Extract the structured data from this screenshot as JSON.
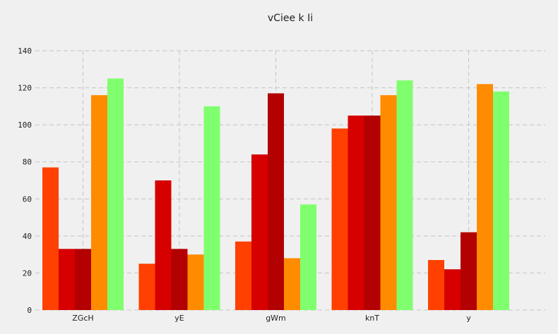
{
  "chart_data": {
    "type": "bar",
    "title": "vCiee k Ii",
    "xlabel": "",
    "ylabel": "",
    "ylim": [
      0,
      140
    ],
    "yticks": [
      0,
      20,
      40,
      60,
      80,
      100,
      120,
      140
    ],
    "grid": true,
    "categories": [
      "ZGcH",
      "yE",
      "gWm",
      "knT",
      "y"
    ],
    "series": [
      {
        "color": "#ff4000",
        "values": [
          77,
          25,
          37,
          98,
          27
        ]
      },
      {
        "color": "#d60000",
        "values": [
          33,
          70,
          84,
          105,
          22
        ]
      },
      {
        "color": "#b30000",
        "values": [
          33,
          33,
          117,
          105,
          42
        ]
      },
      {
        "color": "#ff8c00",
        "values": [
          116,
          30,
          28,
          116,
          122
        ]
      },
      {
        "color": "#80ff6e",
        "values": [
          125,
          110,
          57,
          124,
          118
        ]
      }
    ]
  }
}
